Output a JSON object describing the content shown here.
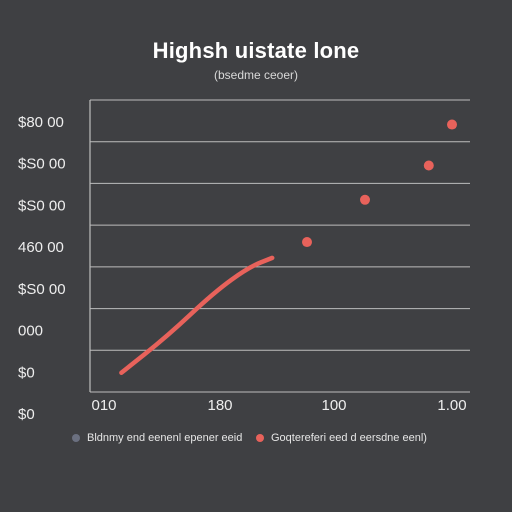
{
  "chart_data": {
    "type": "line",
    "title": "Highsh uistate lone",
    "subtitle": "(bsedme ceoer)",
    "y_tick_labels": [
      "$80 00",
      "$S0 00",
      "$S0 00",
      "460 00",
      "$S0 00",
      "000",
      "$0",
      "$0"
    ],
    "x_tick_labels": [
      "010",
      "180",
      "100",
      "1.00"
    ],
    "grid": true,
    "legend_placement": "bottom",
    "series": [
      {
        "name": "Bldnmy end eenenl epener eeid",
        "style": "line",
        "color": "#6b7080",
        "line_color": "#e8625b",
        "points": [
          {
            "x": 0.15,
            "y": 0.04
          },
          {
            "x": 0.55,
            "y": 0.32
          },
          {
            "x": 0.95,
            "y": 0.65
          },
          {
            "x": 1.25,
            "y": 0.84
          },
          {
            "x": 1.45,
            "y": 0.91
          }
        ]
      },
      {
        "name": "Goqtereferi eed d eersdne eenl)",
        "style": "scatter",
        "color": "#e8625b",
        "points": [
          {
            "x": 1.75,
            "y": 1.03
          },
          {
            "x": 2.25,
            "y": 1.35
          },
          {
            "x": 2.8,
            "y": 1.61
          },
          {
            "x": 3.0,
            "y": 1.92
          }
        ]
      }
    ]
  }
}
